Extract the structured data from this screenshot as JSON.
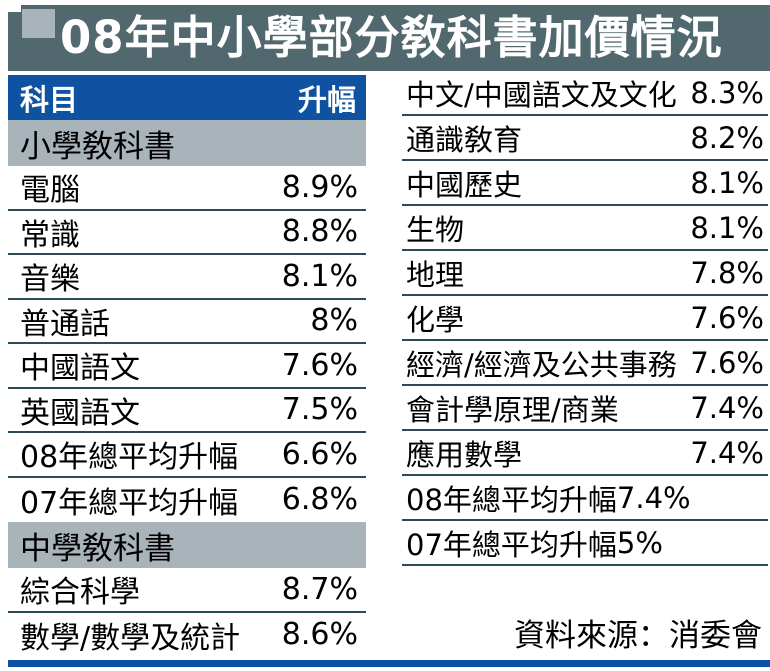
{
  "title": "08年中小學部分敎科書加價情況",
  "left_table": {
    "header": {
      "subject": "科目",
      "increase": "升幅"
    },
    "rows": [
      {
        "type": "section",
        "label": "小學敎科書"
      },
      {
        "type": "data",
        "label": "電腦",
        "value": "8.9%"
      },
      {
        "type": "data",
        "label": "常識",
        "value": "8.8%"
      },
      {
        "type": "data",
        "label": "音樂",
        "value": "8.1%"
      },
      {
        "type": "data",
        "label": "普通話",
        "value": "8%"
      },
      {
        "type": "data",
        "label": "中國語文",
        "value": "7.6%"
      },
      {
        "type": "data",
        "label": "英國語文",
        "value": "7.5%"
      },
      {
        "type": "data",
        "label": "08年總平均升幅",
        "value": "6.6%"
      },
      {
        "type": "data",
        "label": "07年總平均升幅",
        "value": "6.8%"
      },
      {
        "type": "section",
        "label": "中學敎科書"
      },
      {
        "type": "data",
        "label": "綜合科學",
        "value": "8.7%"
      },
      {
        "type": "data",
        "label": "數學/數學及統計",
        "value": "8.6%"
      }
    ]
  },
  "right_table": {
    "rows": [
      {
        "type": "data",
        "label": "中文/中國語文及文化",
        "value": "8.3%"
      },
      {
        "type": "data",
        "label": "通識敎育",
        "value": "8.2%"
      },
      {
        "type": "data",
        "label": "中國歷史",
        "value": "8.1%"
      },
      {
        "type": "data",
        "label": "生物",
        "value": "8.1%"
      },
      {
        "type": "data",
        "label": "地理",
        "value": "7.8%"
      },
      {
        "type": "data",
        "label": "化學",
        "value": "7.6%"
      },
      {
        "type": "data",
        "label": "經濟/經濟及公共事務",
        "value": "7.6%"
      },
      {
        "type": "data",
        "label": "會計學原理/商業",
        "value": "7.4%"
      },
      {
        "type": "data",
        "label": "應用數學",
        "value": "7.4%"
      },
      {
        "type": "data",
        "label": "08年總平均升幅",
        "value": "7.4%",
        "flush": true
      },
      {
        "type": "data",
        "label": "07年總平均升幅",
        "value": "5%",
        "flush": true
      }
    ]
  },
  "source": "資料來源：消委會",
  "colors": {
    "accent_blue": "#0f52a1",
    "title_bar_slate": "#52686f",
    "section_gray": "#a8b3ba",
    "divider": "#2c4b59",
    "title_text": "#ffffff"
  },
  "chart_data": {
    "type": "table",
    "title": "08年中小學部分敎科書加價情況",
    "columns": [
      "科目",
      "升幅"
    ],
    "sections": [
      {
        "name": "小學敎科書",
        "rows": [
          [
            "電腦",
            "8.9%"
          ],
          [
            "常識",
            "8.8%"
          ],
          [
            "音樂",
            "8.1%"
          ],
          [
            "普通話",
            "8%"
          ],
          [
            "中國語文",
            "7.6%"
          ],
          [
            "英國語文",
            "7.5%"
          ],
          [
            "08年總平均升幅",
            "6.6%"
          ],
          [
            "07年總平均升幅",
            "6.8%"
          ]
        ]
      },
      {
        "name": "中學敎科書",
        "rows": [
          [
            "綜合科學",
            "8.7%"
          ],
          [
            "數學/數學及統計",
            "8.6%"
          ],
          [
            "中文/中國語文及文化",
            "8.3%"
          ],
          [
            "通識敎育",
            "8.2%"
          ],
          [
            "中國歷史",
            "8.1%"
          ],
          [
            "生物",
            "8.1%"
          ],
          [
            "地理",
            "7.8%"
          ],
          [
            "化學",
            "7.6%"
          ],
          [
            "經濟/經濟及公共事務",
            "7.6%"
          ],
          [
            "會計學原理/商業",
            "7.4%"
          ],
          [
            "應用數學",
            "7.4%"
          ],
          [
            "08年總平均升幅",
            "7.4%"
          ],
          [
            "07年總平均升幅",
            "5%"
          ]
        ]
      }
    ],
    "source": "資料來源：消委會"
  }
}
